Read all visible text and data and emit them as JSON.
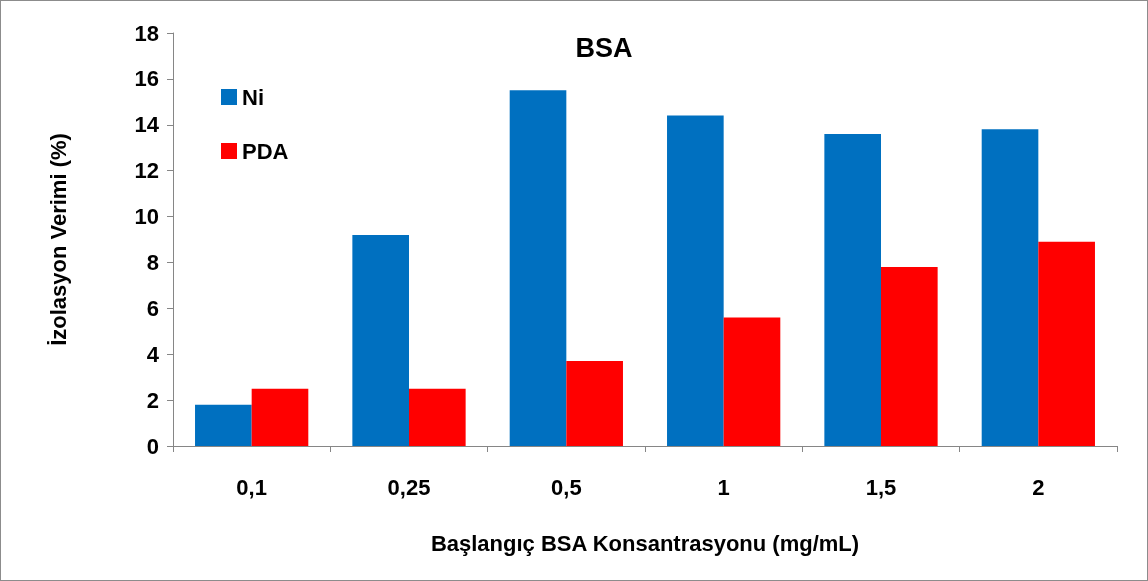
{
  "chart_data": {
    "type": "bar",
    "title": "BSA",
    "xlabel": "Başlangıç BSA Konsantrasyonu (mg/mL)",
    "ylabel": "İzolasyon Verimi (%)",
    "categories": [
      "0,1",
      "0,25",
      "0,5",
      "1",
      "1,5",
      "2"
    ],
    "series": [
      {
        "name": "Ni",
        "color": "#0070c0",
        "values": [
          1.8,
          9.2,
          15.5,
          14.4,
          13.6,
          13.8
        ]
      },
      {
        "name": "PDA",
        "color": "#ff0000",
        "values": [
          2.5,
          2.5,
          3.7,
          5.6,
          7.8,
          8.9
        ]
      }
    ],
    "ylim": [
      0,
      18
    ],
    "yticks": [
      0,
      2,
      4,
      6,
      8,
      10,
      12,
      14,
      16,
      18
    ],
    "grid": false,
    "legend": "top left"
  }
}
